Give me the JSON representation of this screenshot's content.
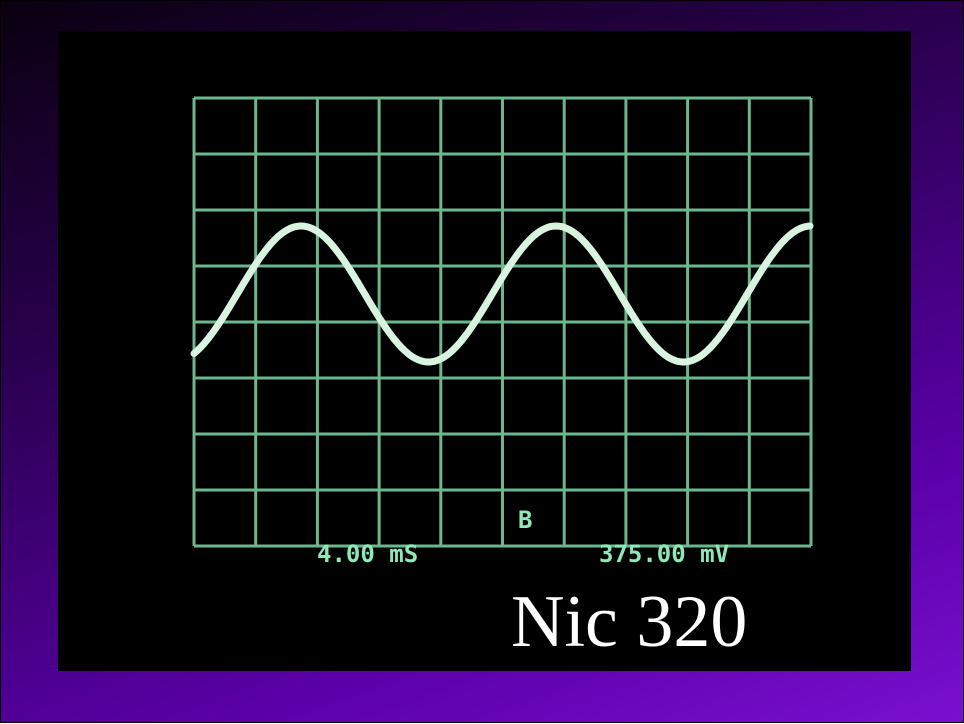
{
  "screen": {
    "channel": "B",
    "timebase": "4.00 mS",
    "voltage": "375.00 mV"
  },
  "caption": "Nic 320"
}
